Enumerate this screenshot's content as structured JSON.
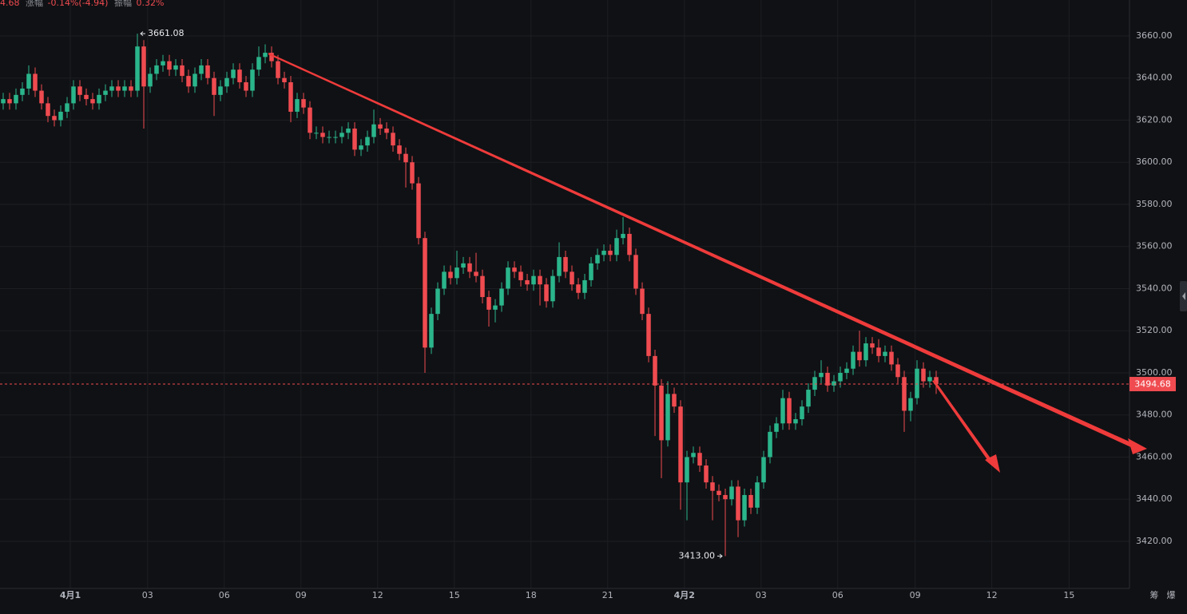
{
  "header": {
    "parts": [
      "4.68",
      "涨幅",
      "-0.14%(-4.94)",
      "振幅",
      "0.32%"
    ]
  },
  "chart_data": {
    "type": "candlestick",
    "up_color": "#2bb58b",
    "down_color": "#ef4b50",
    "grid": true,
    "open": [
      3628,
      3630,
      3628,
      3632,
      3635,
      3642,
      3634,
      3628,
      3622,
      3620,
      3624,
      3628,
      3636,
      3632,
      3630,
      3628,
      3632,
      3634,
      3636,
      3634,
      3636,
      3634,
      3655,
      3636,
      3642,
      3646,
      3648,
      3644,
      3646,
      3641,
      3636,
      3642,
      3646,
      3640,
      3632,
      3636,
      3640,
      3644,
      3638,
      3634,
      3644,
      3650,
      3652,
      3648,
      3640,
      3638,
      3624,
      3630,
      3626,
      3614,
      3614,
      3612,
      3612,
      3612,
      3614,
      3616,
      3606,
      3608,
      3612,
      3618,
      3616,
      3614,
      3608,
      3604,
      3600,
      3590,
      3564,
      3512,
      3528,
      3540,
      3548,
      3545,
      3550,
      3552,
      3548,
      3546,
      3536,
      3530,
      3532,
      3540,
      3550,
      3548,
      3544,
      3542,
      3546,
      3542,
      3534,
      3546,
      3555,
      3548,
      3542,
      3538,
      3544,
      3552,
      3556,
      3558,
      3556,
      3564,
      3566,
      3556,
      3540,
      3528,
      3508,
      3494,
      3468,
      3490,
      3484,
      3448,
      3460,
      3462,
      3456,
      3448,
      3444,
      3442,
      3440,
      3446,
      3430,
      3442,
      3436,
      3448,
      3460,
      3472,
      3476,
      3488,
      3476,
      3478,
      3484,
      3492,
      3498,
      3500,
      3494,
      3496,
      3500,
      3502,
      3510,
      3506,
      3514,
      3512,
      3508,
      3510,
      3504,
      3498,
      3482,
      3488,
      3502,
      3496,
      3498
    ],
    "high": [
      3633,
      3633,
      3635,
      3638,
      3646,
      3645,
      3637,
      3631,
      3625,
      3627,
      3631,
      3639,
      3639,
      3635,
      3633,
      3635,
      3637,
      3639,
      3639,
      3639,
      3639,
      3661.08,
      3658,
      3645,
      3649,
      3651,
      3651,
      3649,
      3649,
      3644,
      3645,
      3649,
      3649,
      3643,
      3639,
      3643,
      3647,
      3647,
      3641,
      3647,
      3655,
      3656,
      3655,
      3651,
      3643,
      3641,
      3633,
      3633,
      3629,
      3617,
      3617,
      3615,
      3615,
      3617,
      3619,
      3619,
      3611,
      3615,
      3625,
      3621,
      3619,
      3617,
      3611,
      3607,
      3603,
      3593,
      3567,
      3531,
      3543,
      3551,
      3551,
      3558,
      3555,
      3555,
      3557,
      3549,
      3539,
      3535,
      3543,
      3553,
      3553,
      3551,
      3547,
      3549,
      3549,
      3545,
      3549,
      3562,
      3558,
      3551,
      3545,
      3547,
      3555,
      3559,
      3561,
      3561,
      3568,
      3574,
      3569,
      3559,
      3543,
      3531,
      3511,
      3497,
      3496,
      3493,
      3487,
      3463,
      3465,
      3465,
      3459,
      3451,
      3447,
      3445,
      3449,
      3449,
      3445,
      3445,
      3451,
      3463,
      3475,
      3479,
      3492,
      3491,
      3481,
      3487,
      3495,
      3501,
      3506,
      3503,
      3499,
      3503,
      3505,
      3513,
      3520,
      3517,
      3517,
      3516,
      3513,
      3513,
      3507,
      3501,
      3491,
      3506,
      3505,
      3501,
      3501
    ],
    "low": [
      3625,
      3625,
      3625,
      3629,
      3632,
      3631,
      3625,
      3619,
      3617,
      3617,
      3621,
      3625,
      3629,
      3627,
      3625,
      3625,
      3629,
      3631,
      3631,
      3631,
      3631,
      3631,
      3616,
      3633,
      3639,
      3643,
      3641,
      3641,
      3638,
      3633,
      3633,
      3639,
      3637,
      3622,
      3629,
      3633,
      3637,
      3635,
      3631,
      3631,
      3641,
      3647,
      3645,
      3637,
      3635,
      3619,
      3621,
      3623,
      3611,
      3611,
      3609,
      3609,
      3609,
      3609,
      3611,
      3603,
      3603,
      3605,
      3609,
      3613,
      3611,
      3605,
      3601,
      3588,
      3587,
      3561,
      3500,
      3509,
      3525,
      3537,
      3542,
      3542,
      3547,
      3545,
      3543,
      3533,
      3522,
      3524,
      3529,
      3537,
      3545,
      3541,
      3539,
      3539,
      3532,
      3531,
      3531,
      3543,
      3545,
      3539,
      3535,
      3535,
      3541,
      3549,
      3553,
      3553,
      3553,
      3561,
      3553,
      3537,
      3525,
      3505,
      3470,
      3450,
      3465,
      3481,
      3435,
      3430,
      3457,
      3453,
      3445,
      3430,
      3439,
      3413,
      3437,
      3422,
      3427,
      3433,
      3433,
      3445,
      3457,
      3469,
      3473,
      3473,
      3473,
      3475,
      3481,
      3489,
      3495,
      3491,
      3491,
      3493,
      3497,
      3499,
      3503,
      3503,
      3509,
      3505,
      3505,
      3501,
      3495,
      3472,
      3477,
      3485,
      3493,
      3493,
      3490
    ],
    "close": [
      3630,
      3628,
      3632,
      3635,
      3642,
      3634,
      3628,
      3622,
      3620,
      3624,
      3628,
      3636,
      3632,
      3630,
      3628,
      3632,
      3634,
      3636,
      3634,
      3636,
      3634,
      3655,
      3636,
      3642,
      3646,
      3648,
      3644,
      3646,
      3641,
      3636,
      3642,
      3646,
      3640,
      3632,
      3636,
      3640,
      3644,
      3638,
      3634,
      3644,
      3650,
      3652,
      3648,
      3640,
      3638,
      3624,
      3630,
      3626,
      3614,
      3614,
      3612,
      3612,
      3612,
      3614,
      3616,
      3606,
      3608,
      3612,
      3618,
      3616,
      3614,
      3608,
      3604,
      3600,
      3590,
      3564,
      3512,
      3528,
      3540,
      3548,
      3545,
      3550,
      3552,
      3548,
      3546,
      3536,
      3530,
      3532,
      3540,
      3550,
      3548,
      3544,
      3542,
      3546,
      3542,
      3534,
      3546,
      3555,
      3548,
      3542,
      3538,
      3544,
      3552,
      3556,
      3558,
      3556,
      3564,
      3566,
      3556,
      3540,
      3528,
      3508,
      3494,
      3468,
      3490,
      3484,
      3448,
      3460,
      3462,
      3456,
      3448,
      3444,
      3442,
      3440,
      3446,
      3430,
      3442,
      3436,
      3448,
      3460,
      3472,
      3476,
      3488,
      3476,
      3478,
      3484,
      3492,
      3498,
      3500,
      3494,
      3496,
      3500,
      3502,
      3510,
      3506,
      3514,
      3512,
      3508,
      3510,
      3504,
      3498,
      3482,
      3488,
      3502,
      3496,
      3498,
      3494.68
    ],
    "xlim": [
      -0.5,
      176.25
    ],
    "xticks": [
      {
        "value": 10.5,
        "label": "4月1"
      },
      {
        "value": 22.6,
        "label": "03"
      },
      {
        "value": 34.6,
        "label": "06"
      },
      {
        "value": 46.6,
        "label": "09"
      },
      {
        "value": 58.6,
        "label": "12"
      },
      {
        "value": 70.6,
        "label": "15"
      },
      {
        "value": 82.6,
        "label": "18"
      },
      {
        "value": 94.6,
        "label": "21"
      },
      {
        "value": 106.6,
        "label": "4月2"
      },
      {
        "value": 118.6,
        "label": "03"
      },
      {
        "value": 130.6,
        "label": "06"
      },
      {
        "value": 142.7,
        "label": "09"
      },
      {
        "value": 154.7,
        "label": "12"
      },
      {
        "value": 166.8,
        "label": "15"
      }
    ],
    "ylim": [
      3400.28,
      3677.06
    ],
    "yticks": [
      {
        "value": 3420,
        "label": "3420.00"
      },
      {
        "value": 3440,
        "label": "3440.00"
      },
      {
        "value": 3460,
        "label": "3460.00"
      },
      {
        "value": 3480,
        "label": "3480.00"
      },
      {
        "value": 3500,
        "label": "3500.00"
      },
      {
        "value": 3520,
        "label": "3520.00"
      },
      {
        "value": 3540,
        "label": "3540.00"
      },
      {
        "value": 3560,
        "label": "3560.00"
      },
      {
        "value": 3580,
        "label": "3580.00"
      },
      {
        "value": 3600,
        "label": "3600.00"
      },
      {
        "value": 3620,
        "label": "3620.00"
      },
      {
        "value": 3640,
        "label": "3640.00"
      },
      {
        "value": 3660,
        "label": "3660.00"
      }
    ],
    "last_price": 3494.68,
    "last_price_label": "3494.68",
    "high_label": "3661.08",
    "low_label": "3413.00"
  },
  "footer": {
    "buttons": [
      "筹",
      "爆"
    ]
  }
}
